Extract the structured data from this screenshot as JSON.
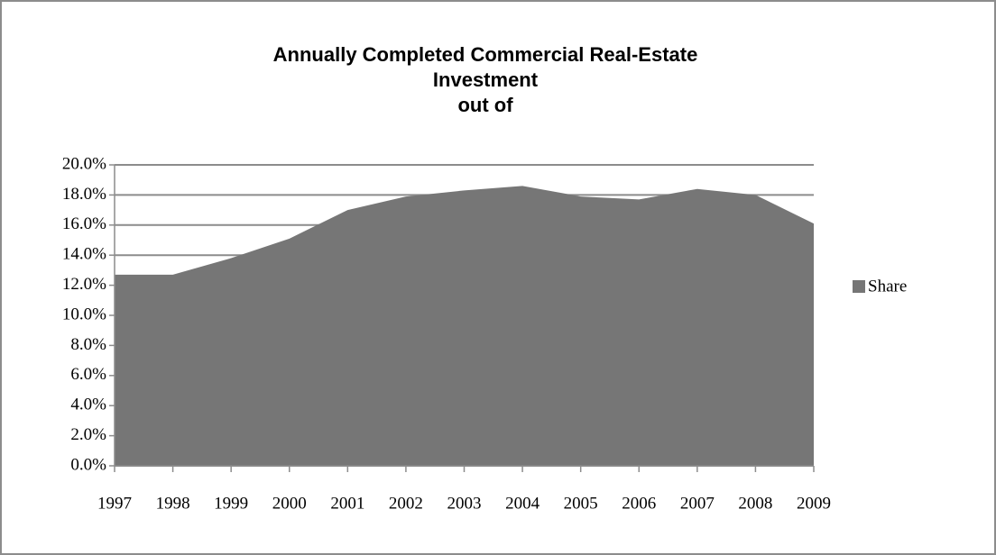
{
  "chart_data": {
    "type": "area",
    "title": [
      "Annually Completed Commercial Real-Estate",
      "Investment",
      "out of"
    ],
    "categories": [
      "1997",
      "1998",
      "1999",
      "2000",
      "2001",
      "2002",
      "2003",
      "2004",
      "2005",
      "2006",
      "2007",
      "2008",
      "2009"
    ],
    "series": [
      {
        "name": "Share",
        "color": "#767676",
        "values": [
          12.7,
          12.7,
          13.8,
          15.1,
          17.0,
          17.9,
          18.3,
          18.6,
          17.9,
          17.7,
          18.4,
          18.0,
          16.1
        ]
      }
    ],
    "ylim": [
      0,
      20
    ],
    "yticks": [
      {
        "value": 0,
        "label": "0.0%"
      },
      {
        "value": 2,
        "label": "2.0%"
      },
      {
        "value": 4,
        "label": "4.0%"
      },
      {
        "value": 6,
        "label": "6.0%"
      },
      {
        "value": 8,
        "label": "8.0%"
      },
      {
        "value": 10,
        "label": "10.0%"
      },
      {
        "value": 12,
        "label": "12.0%"
      },
      {
        "value": 14,
        "label": "14.0%"
      },
      {
        "value": 16,
        "label": "16.0%"
      },
      {
        "value": 18,
        "label": "18.0%"
      },
      {
        "value": 20,
        "label": "20.0%"
      }
    ],
    "grid": true,
    "legend": "right"
  }
}
